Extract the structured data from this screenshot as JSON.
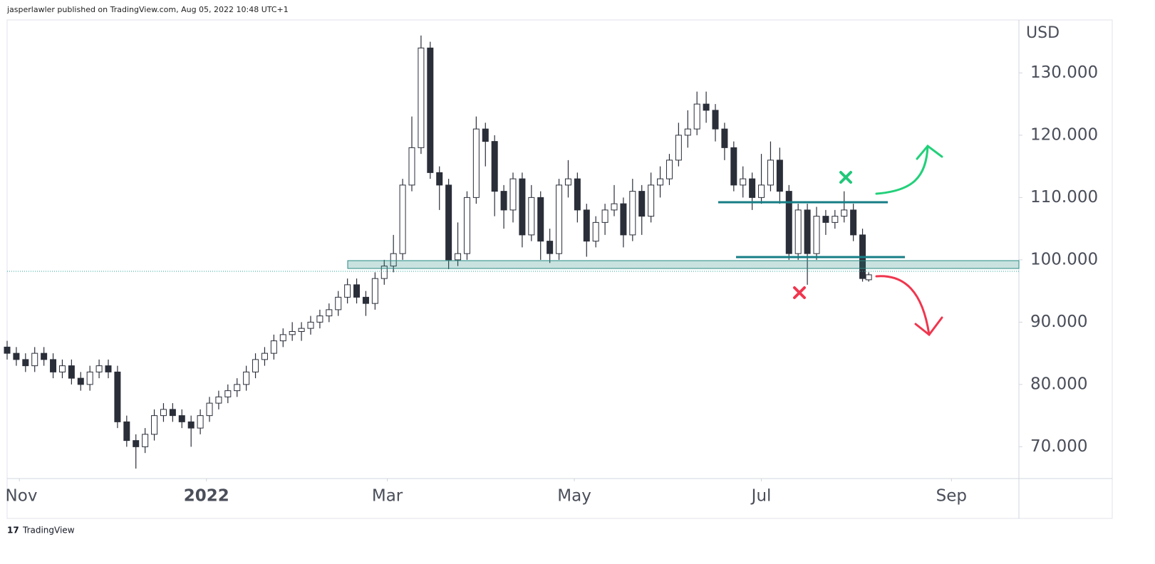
{
  "header": {
    "published": "jasperlawler published on TradingView.com, Aug 05, 2022 10:48 UTC+1"
  },
  "footer": {
    "brand": "TradingView"
  },
  "chart_data": {
    "type": "candlestick",
    "currency": "USD",
    "x": [
      -4,
      -1,
      2,
      5,
      8,
      11,
      14,
      17,
      20,
      23,
      26,
      29,
      32,
      35,
      38,
      41,
      44,
      47,
      50,
      53,
      56,
      59,
      62,
      65,
      68,
      71,
      74,
      77,
      80,
      83,
      86,
      89,
      92,
      95,
      98,
      101,
      104,
      107,
      110,
      113,
      116,
      119,
      122,
      125,
      128,
      131,
      134,
      137,
      140,
      143,
      146,
      149,
      152,
      155,
      158,
      161,
      164,
      167,
      170,
      173,
      176,
      179,
      182,
      185,
      188,
      191,
      194,
      197,
      200,
      203,
      206,
      209,
      212,
      215,
      218,
      221,
      224,
      227,
      230,
      233,
      236,
      239,
      242,
      245,
      248,
      251,
      254,
      257,
      260,
      263,
      266,
      269,
      272,
      275,
      277
    ],
    "open": [
      86,
      85,
      84,
      83,
      85,
      84,
      82,
      83,
      81,
      80,
      82,
      83,
      82,
      74,
      71,
      70,
      72,
      75,
      76,
      75,
      74,
      73,
      75,
      77,
      78,
      79,
      80,
      82,
      84,
      85,
      87,
      88,
      88.5,
      89,
      90,
      91,
      92,
      94,
      96,
      94,
      93,
      97,
      99,
      101,
      112,
      118,
      134,
      114,
      112,
      100,
      101,
      110,
      121,
      119,
      111,
      108,
      113,
      104,
      110,
      103,
      101,
      112,
      113,
      108,
      103,
      106,
      108,
      109,
      104,
      111,
      107,
      112,
      113,
      116,
      120,
      121,
      125,
      124,
      121,
      118,
      112,
      113,
      110,
      112,
      116,
      111,
      101,
      108,
      101,
      107,
      106,
      107,
      108,
      104,
      96.8
    ],
    "high": [
      87,
      86,
      85,
      86,
      86,
      85,
      84,
      84,
      82,
      83,
      84,
      84,
      83,
      75,
      72,
      73,
      76,
      77,
      77,
      76,
      75,
      76,
      78,
      79,
      80,
      81,
      83,
      85,
      86,
      88,
      89,
      90,
      90,
      91,
      92,
      93,
      95,
      97,
      97,
      95,
      98,
      100,
      104,
      113,
      123,
      136,
      135,
      115,
      113,
      106,
      111,
      123,
      122,
      120,
      112,
      114,
      114,
      112,
      111,
      105,
      113,
      116,
      114,
      109,
      107,
      109,
      112,
      110,
      113,
      112,
      114,
      115,
      117,
      122,
      124,
      127,
      127,
      125,
      122,
      119,
      115,
      114,
      117,
      119,
      118,
      112,
      109,
      109,
      108.5,
      108,
      108,
      111,
      109,
      105,
      98
    ],
    "low": [
      84,
      83,
      82,
      82,
      83,
      81,
      81,
      80,
      79,
      79,
      81,
      81,
      73,
      70,
      66.5,
      69,
      71,
      74,
      74,
      73,
      70,
      72,
      74,
      76,
      77,
      78,
      79,
      81,
      83,
      84,
      86,
      87,
      87,
      88,
      89,
      90,
      91,
      93,
      93,
      91,
      92,
      96,
      98,
      100,
      111,
      117,
      113,
      108,
      98.5,
      99,
      100,
      109,
      115,
      107,
      105,
      106,
      102,
      103,
      100,
      99.5,
      100,
      110,
      106,
      100.5,
      102,
      104,
      107,
      102,
      103,
      104,
      106,
      110,
      112,
      115,
      118,
      120,
      122,
      119,
      116,
      111,
      110,
      108,
      109,
      111,
      109,
      100,
      100,
      96,
      100,
      104,
      105,
      106,
      103,
      96.5,
      96.5
    ],
    "close": [
      85,
      84,
      83,
      85,
      84,
      82,
      83,
      81,
      80,
      82,
      83,
      82,
      74,
      71,
      70,
      72,
      75,
      76,
      75,
      74,
      73,
      75,
      77,
      78,
      79,
      80,
      82,
      84,
      85,
      87,
      88,
      88.5,
      89,
      90,
      91,
      92,
      94,
      96,
      94,
      93,
      97,
      99,
      101,
      112,
      118,
      134,
      114,
      112,
      100,
      101,
      110,
      121,
      119,
      111,
      108,
      113,
      104,
      110,
      103,
      101,
      112,
      113,
      108,
      103,
      106,
      108,
      109,
      104,
      111,
      107,
      112,
      113,
      116,
      120,
      121,
      125,
      124,
      121,
      118,
      112,
      113,
      110,
      112,
      116,
      111,
      101,
      108,
      101,
      107,
      106,
      107,
      108,
      104,
      97,
      97.6
    ],
    "up_color": "#ffffff",
    "down_color": "#2a2e39",
    "wick_color": "#2a2e39",
    "xlim": [
      -4,
      326
    ],
    "xticks": [
      {
        "value": 0,
        "label": "Nov"
      },
      {
        "value": 61,
        "label": "2022"
      },
      {
        "value": 120,
        "label": "Mar"
      },
      {
        "value": 181,
        "label": "May"
      },
      {
        "value": 242,
        "label": "Jul"
      },
      {
        "value": 304,
        "label": "Sep"
      }
    ],
    "ylim": [
      64.9,
      138.5
    ],
    "yticks": [
      {
        "value": 70,
        "label": "70.000"
      },
      {
        "value": 80,
        "label": "80.000"
      },
      {
        "value": 90,
        "label": "90.000"
      },
      {
        "value": 100,
        "label": "100.000"
      },
      {
        "value": 110,
        "label": "110.000"
      },
      {
        "value": 120,
        "label": "120.000"
      },
      {
        "value": 130,
        "label": "130.000"
      }
    ]
  }
}
